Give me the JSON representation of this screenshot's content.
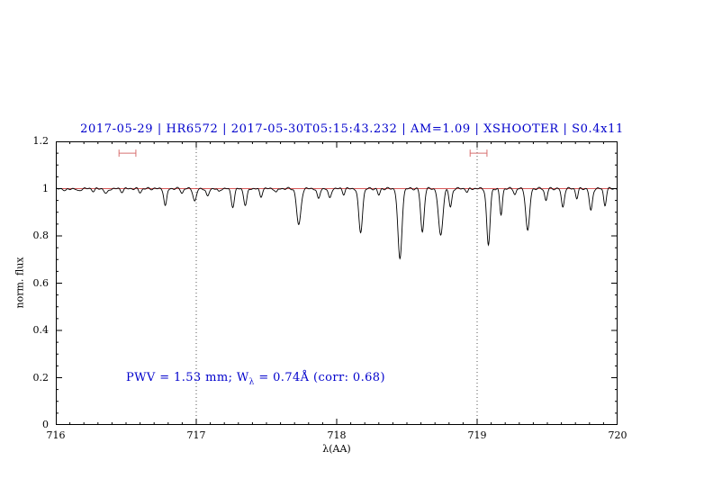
{
  "chart_data": {
    "type": "line",
    "title": "2017-05-29 | HR6572 | 2017-05-30T05:15:43.232 | AM=1.09 | XSHOOTER | S0.4x11",
    "title_color": "#0000cc",
    "xlabel": "λ(AA)",
    "ylabel": "norm. flux",
    "xlim": [
      716,
      720
    ],
    "ylim": [
      0,
      1.2
    ],
    "xticks": [
      716,
      717,
      718,
      719,
      720
    ],
    "x_minor_step": 0.1,
    "yticks": [
      0,
      0.2,
      0.4,
      0.6,
      0.8,
      1,
      1.2
    ],
    "y_minor_step": 0.05,
    "grid": false,
    "legend": "none",
    "vlines": [
      717,
      719
    ],
    "vline_style": "dotted",
    "continuum": {
      "y": 1.0,
      "color": "#cc2222"
    },
    "spectrum_color": "#000000",
    "marker_color": "#d87070",
    "markers": [
      {
        "x1": 716.45,
        "x2": 716.57,
        "y": 1.15
      },
      {
        "x1": 718.95,
        "x2": 719.07,
        "y": 1.15
      }
    ],
    "annotation": {
      "prefix": "PWV = 1.53 mm; W",
      "sub": "λ",
      "suffix": " = 0.74Å (corr: 0.68)",
      "color": "#0000cc"
    },
    "absorption_lines": [
      {
        "center": 716.07,
        "depth": 0.01,
        "sigma": 0.015
      },
      {
        "center": 716.16,
        "depth": 0.012,
        "sigma": 0.016
      },
      {
        "center": 716.27,
        "depth": 0.01,
        "sigma": 0.014
      },
      {
        "center": 716.36,
        "depth": 0.022,
        "sigma": 0.018
      },
      {
        "center": 716.47,
        "depth": 0.012,
        "sigma": 0.015
      },
      {
        "center": 716.6,
        "depth": 0.015,
        "sigma": 0.015
      },
      {
        "center": 716.78,
        "depth": 0.075,
        "sigma": 0.014
      },
      {
        "center": 716.9,
        "depth": 0.018,
        "sigma": 0.013
      },
      {
        "center": 716.99,
        "depth": 0.055,
        "sigma": 0.016
      },
      {
        "center": 717.08,
        "depth": 0.035,
        "sigma": 0.014
      },
      {
        "center": 717.16,
        "depth": 0.015,
        "sigma": 0.012
      },
      {
        "center": 717.26,
        "depth": 0.075,
        "sigma": 0.016
      },
      {
        "center": 717.35,
        "depth": 0.07,
        "sigma": 0.016
      },
      {
        "center": 717.46,
        "depth": 0.035,
        "sigma": 0.013
      },
      {
        "center": 717.57,
        "depth": 0.018,
        "sigma": 0.012
      },
      {
        "center": 717.73,
        "depth": 0.155,
        "sigma": 0.021
      },
      {
        "center": 717.87,
        "depth": 0.045,
        "sigma": 0.014
      },
      {
        "center": 717.95,
        "depth": 0.042,
        "sigma": 0.014
      },
      {
        "center": 718.05,
        "depth": 0.022,
        "sigma": 0.012
      },
      {
        "center": 718.17,
        "depth": 0.185,
        "sigma": 0.019
      },
      {
        "center": 718.3,
        "depth": 0.027,
        "sigma": 0.013
      },
      {
        "center": 718.45,
        "depth": 0.3,
        "sigma": 0.02
      },
      {
        "center": 718.61,
        "depth": 0.185,
        "sigma": 0.017
      },
      {
        "center": 718.74,
        "depth": 0.2,
        "sigma": 0.022
      },
      {
        "center": 718.81,
        "depth": 0.08,
        "sigma": 0.014
      },
      {
        "center": 718.93,
        "depth": 0.015,
        "sigma": 0.012
      },
      {
        "center": 719.08,
        "depth": 0.24,
        "sigma": 0.017
      },
      {
        "center": 719.17,
        "depth": 0.11,
        "sigma": 0.013
      },
      {
        "center": 719.27,
        "depth": 0.025,
        "sigma": 0.012
      },
      {
        "center": 719.36,
        "depth": 0.18,
        "sigma": 0.019
      },
      {
        "center": 719.49,
        "depth": 0.05,
        "sigma": 0.013
      },
      {
        "center": 719.61,
        "depth": 0.08,
        "sigma": 0.014
      },
      {
        "center": 719.71,
        "depth": 0.04,
        "sigma": 0.012
      },
      {
        "center": 719.81,
        "depth": 0.095,
        "sigma": 0.015
      },
      {
        "center": 719.91,
        "depth": 0.07,
        "sigma": 0.013
      }
    ]
  }
}
